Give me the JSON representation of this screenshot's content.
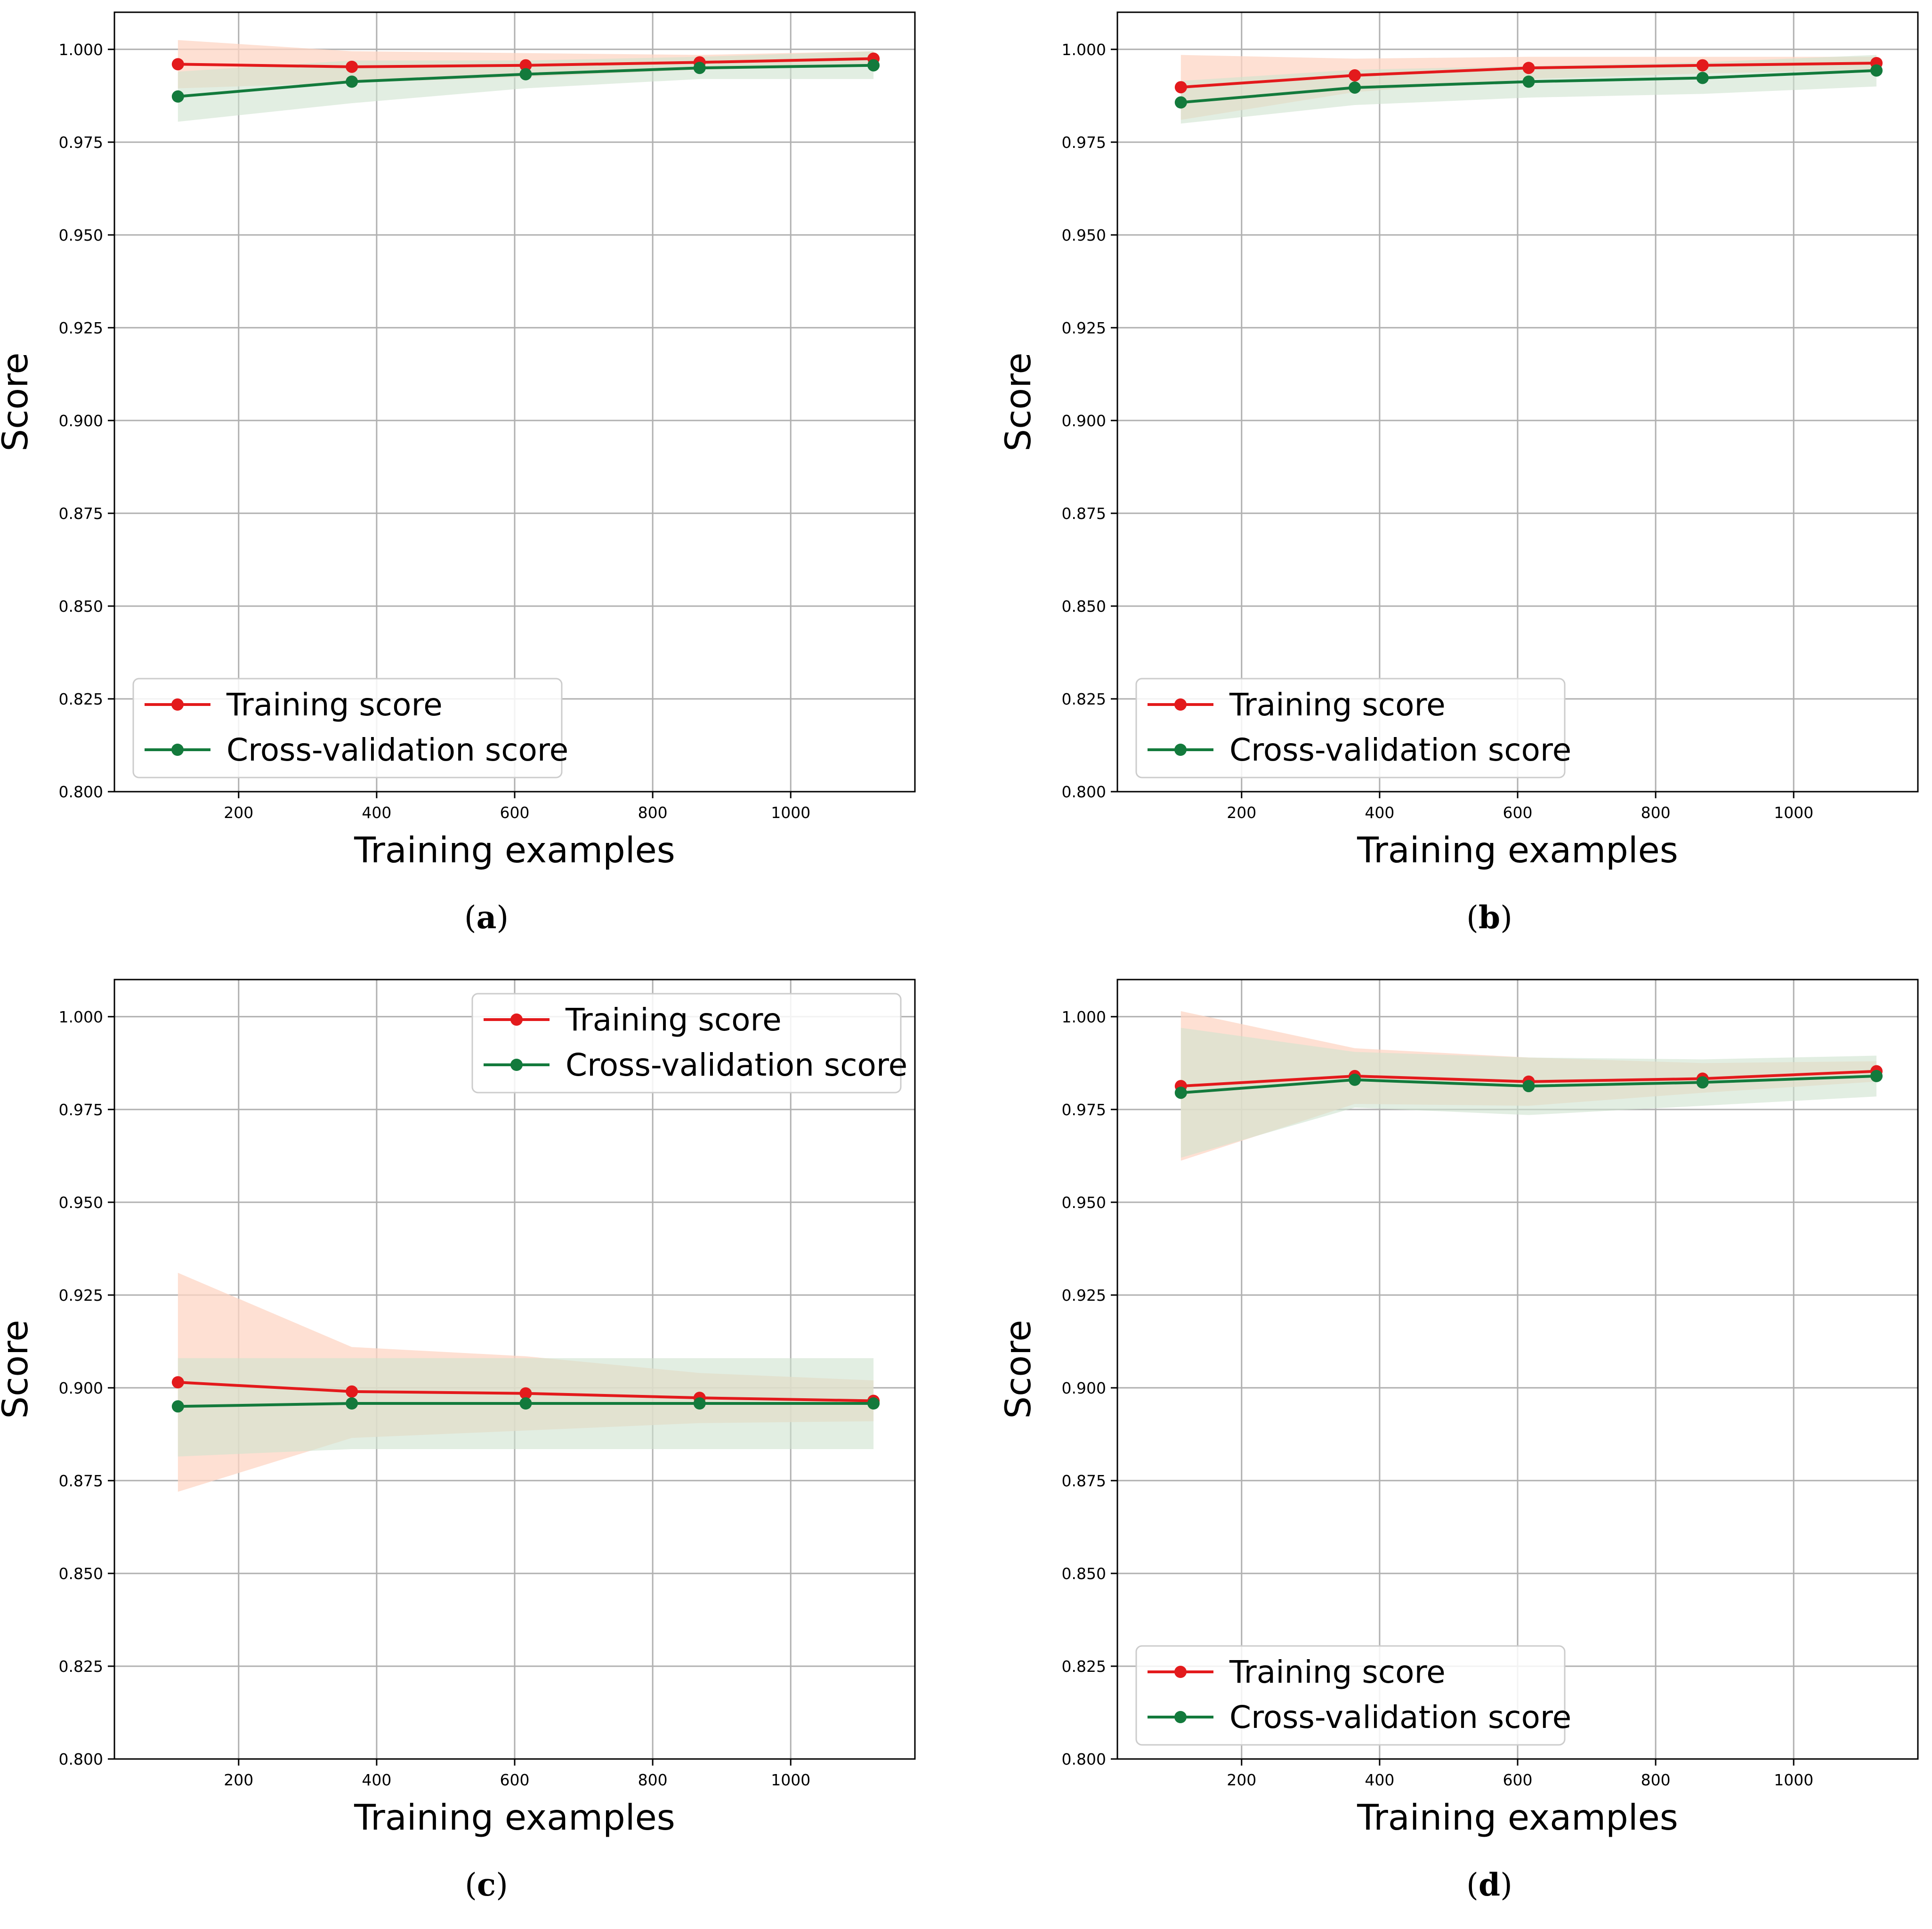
{
  "figure": {
    "panels": [
      {
        "caption_letter": "a",
        "chart_data": {
          "type": "line",
          "title": "",
          "xlabel": "Training examples",
          "ylabel": "Score",
          "xlim": [
            20,
            1180
          ],
          "ylim": [
            0.8,
            1.01
          ],
          "xticks": [
            200,
            400,
            600,
            800,
            1000
          ],
          "yticks": [
            0.8,
            0.825,
            0.85,
            0.875,
            0.9,
            0.925,
            0.95,
            0.975,
            1.0
          ],
          "ytick_format": 3,
          "grid": true,
          "legend": {
            "position": "bottom-left",
            "entries": [
              "Training score",
              "Cross-validation score"
            ]
          },
          "x": [
            112,
            364,
            616,
            868,
            1120
          ],
          "series": [
            {
              "name": "Training score",
              "color": "#e31a1c",
              "band_color": "#fdd5c4",
              "values": [
                0.996,
                0.9953,
                0.9957,
                0.9965,
                0.9975
              ],
              "lower": [
                0.9895,
                0.991,
                0.9925,
                0.9945,
                0.9955
              ],
              "upper": [
                1.0025,
                0.9995,
                0.999,
                0.9985,
                0.9995
              ]
            },
            {
              "name": "Cross-validation score",
              "color": "#137a3c",
              "band_color": "#cfe3cf",
              "values": [
                0.9873,
                0.9913,
                0.9933,
                0.995,
                0.9957
              ],
              "lower": [
                0.9805,
                0.9855,
                0.9895,
                0.992,
                0.992
              ],
              "upper": [
                0.994,
                0.997,
                0.997,
                0.998,
                0.9995
              ]
            }
          ]
        }
      },
      {
        "caption_letter": "b",
        "chart_data": {
          "type": "line",
          "title": "",
          "xlabel": "Training examples",
          "ylabel": "Score",
          "xlim": [
            20,
            1180
          ],
          "ylim": [
            0.8,
            1.01
          ],
          "xticks": [
            200,
            400,
            600,
            800,
            1000
          ],
          "yticks": [
            0.8,
            0.825,
            0.85,
            0.875,
            0.9,
            0.925,
            0.95,
            0.975,
            1.0
          ],
          "ytick_format": 3,
          "grid": true,
          "legend": {
            "position": "bottom-left",
            "entries": [
              "Training score",
              "Cross-validation score"
            ]
          },
          "x": [
            112,
            364,
            616,
            868,
            1120
          ],
          "series": [
            {
              "name": "Training score",
              "color": "#e31a1c",
              "band_color": "#fdd5c4",
              "values": [
                0.9898,
                0.993,
                0.995,
                0.9957,
                0.9963
              ],
              "lower": [
                0.981,
                0.9885,
                0.992,
                0.9935,
                0.9945
              ],
              "upper": [
                0.9985,
                0.9975,
                0.998,
                0.998,
                0.998
              ]
            },
            {
              "name": "Cross-validation score",
              "color": "#137a3c",
              "band_color": "#cfe3cf",
              "values": [
                0.9857,
                0.9897,
                0.9913,
                0.9923,
                0.9943
              ],
              "lower": [
                0.98,
                0.985,
                0.987,
                0.988,
                0.99
              ],
              "upper": [
                0.9915,
                0.9945,
                0.9955,
                0.9965,
                0.9985
              ]
            }
          ]
        }
      },
      {
        "caption_letter": "c",
        "chart_data": {
          "type": "line",
          "title": "",
          "xlabel": "Training examples",
          "ylabel": "Score",
          "xlim": [
            20,
            1180
          ],
          "ylim": [
            0.8,
            1.01
          ],
          "xticks": [
            200,
            400,
            600,
            800,
            1000
          ],
          "yticks": [
            0.8,
            0.825,
            0.85,
            0.875,
            0.9,
            0.925,
            0.95,
            0.975,
            1.0
          ],
          "ytick_format": 3,
          "grid": true,
          "legend": {
            "position": "top-right",
            "entries": [
              "Training score",
              "Cross-validation score"
            ]
          },
          "x": [
            112,
            364,
            616,
            868,
            1120
          ],
          "series": [
            {
              "name": "Training score",
              "color": "#e31a1c",
              "band_color": "#fdd5c4",
              "values": [
                0.9015,
                0.899,
                0.8985,
                0.8973,
                0.8965
              ],
              "lower": [
                0.872,
                0.8865,
                0.8885,
                0.8905,
                0.891
              ],
              "upper": [
                0.931,
                0.911,
                0.9085,
                0.904,
                0.902
              ]
            },
            {
              "name": "Cross-validation score",
              "color": "#137a3c",
              "band_color": "#cfe3cf",
              "values": [
                0.895,
                0.8958,
                0.8958,
                0.8958,
                0.8958
              ],
              "lower": [
                0.8815,
                0.8835,
                0.8835,
                0.8835,
                0.8835
              ],
              "upper": [
                0.908,
                0.908,
                0.908,
                0.908,
                0.908
              ]
            }
          ]
        }
      },
      {
        "caption_letter": "d",
        "chart_data": {
          "type": "line",
          "title": "",
          "xlabel": "Training examples",
          "ylabel": "Score",
          "xlim": [
            20,
            1180
          ],
          "ylim": [
            0.8,
            1.01
          ],
          "xticks": [
            200,
            400,
            600,
            800,
            1000
          ],
          "yticks": [
            0.8,
            0.825,
            0.85,
            0.875,
            0.9,
            0.925,
            0.95,
            0.975,
            1.0
          ],
          "ytick_format": 3,
          "grid": true,
          "legend": {
            "position": "bottom-left",
            "entries": [
              "Training score",
              "Cross-validation score"
            ]
          },
          "x": [
            112,
            364,
            616,
            868,
            1120
          ],
          "series": [
            {
              "name": "Training score",
              "color": "#e31a1c",
              "band_color": "#fdd5c4",
              "values": [
                0.9813,
                0.984,
                0.9825,
                0.9833,
                0.9853
              ],
              "lower": [
                0.9612,
                0.9765,
                0.976,
                0.9795,
                0.9825
              ],
              "upper": [
                1.0015,
                0.9915,
                0.989,
                0.9875,
                0.988
              ]
            },
            {
              "name": "Cross-validation score",
              "color": "#137a3c",
              "band_color": "#cfe3cf",
              "values": [
                0.9795,
                0.983,
                0.9813,
                0.9823,
                0.984
              ],
              "lower": [
                0.962,
                0.9755,
                0.9735,
                0.976,
                0.9785
              ],
              "upper": [
                0.997,
                0.9905,
                0.989,
                0.9885,
                0.9895
              ]
            }
          ]
        }
      }
    ]
  }
}
